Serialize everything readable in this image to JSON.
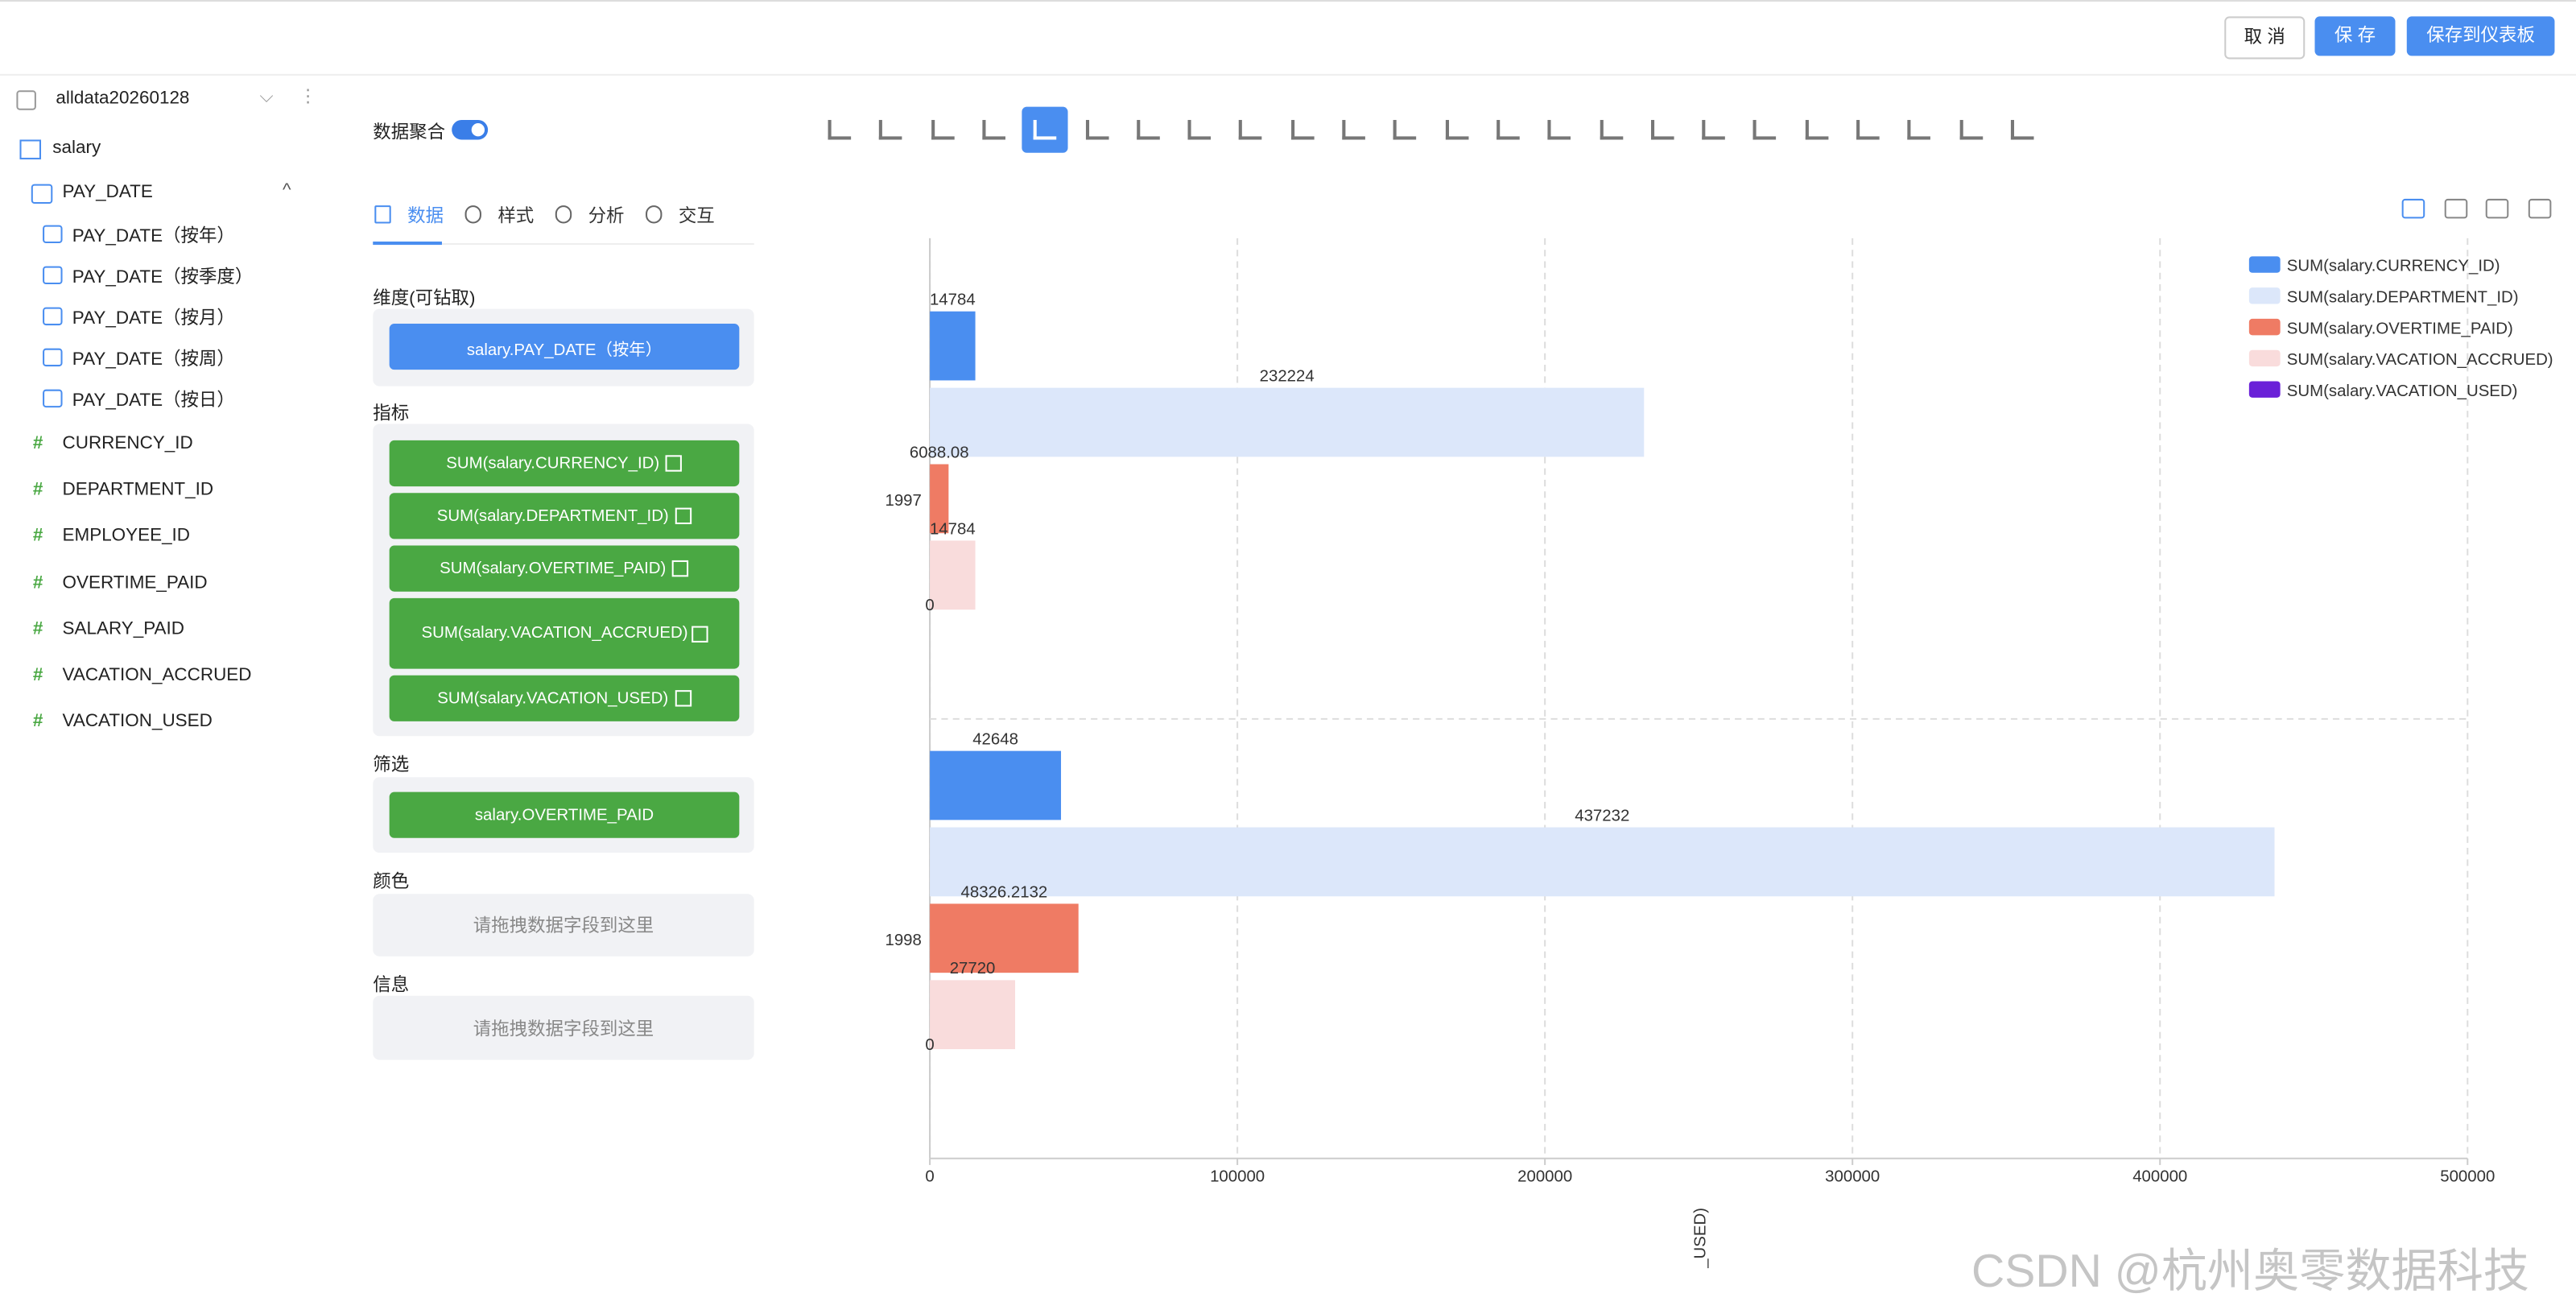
{
  "header": {
    "buttons": [
      "取 消",
      "保 存",
      "保存到仪表板"
    ]
  },
  "sidebar": {
    "dataset": "alldata20260128",
    "table": "salary",
    "date_field": "PAY_DATE",
    "date_levels": [
      "PAY_DATE（按年）",
      "PAY_DATE（按季度）",
      "PAY_DATE（按月）",
      "PAY_DATE（按周）",
      "PAY_DATE（按日）"
    ],
    "measures": [
      "CURRENCY_ID",
      "DEPARTMENT_ID",
      "EMPLOYEE_ID",
      "OVERTIME_PAID",
      "SALARY_PAID",
      "VACATION_ACCRUED",
      "VACATION_USED"
    ]
  },
  "panel": {
    "aggregate_label": "数据聚合",
    "tabs": [
      "数据",
      "样式",
      "分析",
      "交互"
    ],
    "dimension_title": "维度(可钻取)",
    "dimension": "salary.PAY_DATE（按年）",
    "metrics_title": "指标",
    "metrics": [
      "SUM(salary.CURRENCY_ID)",
      "SUM(salary.DEPARTMENT_ID)",
      "SUM(salary.OVERTIME_PAID)",
      "SUM(salary.VACATION_ACCRUED)",
      "SUM(salary.VACATION_USED)"
    ],
    "filter_title": "筛选",
    "filter": "salary.OVERTIME_PAID",
    "color_title": "颜色",
    "color_placeholder": "请拖拽数据字段到这里",
    "info_title": "信息",
    "info_placeholder": "请拖拽数据字段到这里"
  },
  "chart_data": {
    "type": "hbar",
    "categories": [
      "1997",
      "1998"
    ],
    "series": [
      {
        "name": "SUM(salary.CURRENCY_ID)",
        "color": "#4a8ef0",
        "values": [
          14784,
          42648
        ]
      },
      {
        "name": "SUM(salary.DEPARTMENT_ID)",
        "color": "#dce7fa",
        "values": [
          232224,
          437232
        ]
      },
      {
        "name": "SUM(salary.OVERTIME_PAID)",
        "color": "#ef7b64",
        "values": [
          6088.08,
          48326.2132
        ]
      },
      {
        "name": "SUM(salary.VACATION_ACCRUED)",
        "color": "#f9dcdc",
        "values": [
          14784,
          27720
        ]
      },
      {
        "name": "SUM(salary.VACATION_USED)",
        "color": "#6a21d8",
        "values": [
          0,
          0
        ]
      }
    ],
    "xlim": [
      0,
      500000
    ],
    "xticks": [
      0,
      100000,
      200000,
      300000,
      400000,
      500000
    ],
    "x_label": "_USED)",
    "grid": true,
    "legend": "top-right"
  },
  "watermark": "CSDN @杭州奥零数据科技"
}
